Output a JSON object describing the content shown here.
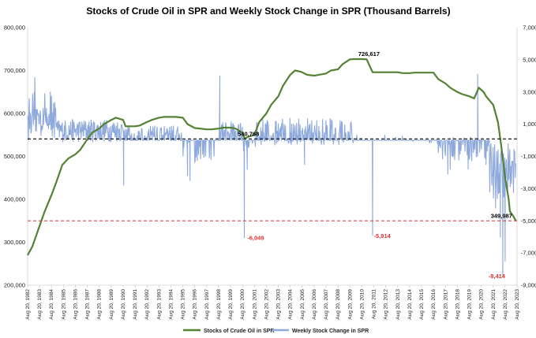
{
  "chart_data": {
    "type": "line",
    "title": "Stocks of Crude Oil in SPR and Weekly Stock Change in SPR (Thousand Barrels)",
    "left_axis": {
      "min": 200000,
      "max": 800000,
      "ticks": [
        "200,000",
        "300,000",
        "400,000",
        "500,000",
        "600,000",
        "700,000",
        "800,000"
      ]
    },
    "right_axis": {
      "min": -9000,
      "max": 7000,
      "ticks": [
        "-9,000",
        "-7,000",
        "-5,000",
        "-3,000",
        "-1,000",
        "1,000",
        "3,000",
        "5,000",
        "7,000"
      ]
    },
    "x_start_year": 1982,
    "x_end_year": 2023,
    "x_tick_labels": [
      "Aug 20, 1982",
      "Aug 20, 1983",
      "Aug 20, 1984",
      "Aug 20, 1985",
      "Aug 20, 1986",
      "Aug 20, 1987",
      "Aug 20, 1988",
      "Aug 20, 1989",
      "Aug 20, 1990",
      "Aug 20, 1991",
      "Aug 20, 1992",
      "Aug 20, 1993",
      "Aug 20, 1994",
      "Aug 20, 1995",
      "Aug 20, 1996",
      "Aug 20, 1997",
      "Aug 20, 1998",
      "Aug 20, 1999",
      "Aug 20, 2000",
      "Aug 20, 2001",
      "Aug 20, 2002",
      "Aug 20, 2003",
      "Aug 20, 2004",
      "Aug 20, 2005",
      "Aug 20, 2006",
      "Aug 20, 2007",
      "Aug 20, 2008",
      "Aug 20, 2009",
      "Aug 20, 2010",
      "Aug 20, 2011",
      "Aug 20, 2012",
      "Aug 20, 2013",
      "Aug 20, 2014",
      "Aug 20, 2015",
      "Aug 20, 2016",
      "Aug 20, 2017",
      "Aug 20, 2018",
      "Aug 20, 2019",
      "Aug 20, 2020",
      "Aug 20, 2021",
      "Aug 20, 2022",
      "Aug 20, 2023"
    ],
    "series": [
      {
        "name": "Stocks of Crude Oil in SPR",
        "axis": "left",
        "color": "#548235",
        "points": [
          [
            1982.6,
            270000
          ],
          [
            1983.0,
            290000
          ],
          [
            1983.5,
            330000
          ],
          [
            1984.0,
            370000
          ],
          [
            1984.6,
            410000
          ],
          [
            1985.0,
            440000
          ],
          [
            1985.5,
            480000
          ],
          [
            1986.0,
            495000
          ],
          [
            1986.6,
            505000
          ],
          [
            1987.0,
            515000
          ],
          [
            1987.6,
            540000
          ],
          [
            1988.0,
            555000
          ],
          [
            1988.6,
            565000
          ],
          [
            1989.0,
            575000
          ],
          [
            1989.6,
            585000
          ],
          [
            1990.0,
            590000
          ],
          [
            1990.6,
            585000
          ],
          [
            1990.8,
            570000
          ],
          [
            1991.0,
            570000
          ],
          [
            1991.6,
            570000
          ],
          [
            1992.0,
            572000
          ],
          [
            1992.6,
            580000
          ],
          [
            1993.0,
            585000
          ],
          [
            1993.6,
            590000
          ],
          [
            1994.0,
            592000
          ],
          [
            1994.6,
            592000
          ],
          [
            1995.0,
            592000
          ],
          [
            1995.6,
            590000
          ],
          [
            1996.0,
            575000
          ],
          [
            1996.6,
            566000
          ],
          [
            1997.0,
            565000
          ],
          [
            1997.6,
            563000
          ],
          [
            1998.0,
            563000
          ],
          [
            1998.6,
            565000
          ],
          [
            1999.0,
            567000
          ],
          [
            1999.6,
            567000
          ],
          [
            2000.0,
            565000
          ],
          [
            2000.6,
            555000
          ],
          [
            2000.8,
            541000
          ],
          [
            2001.0,
            545000
          ],
          [
            2001.6,
            550000
          ],
          [
            2002.0,
            580000
          ],
          [
            2002.6,
            600000
          ],
          [
            2003.0,
            620000
          ],
          [
            2003.6,
            640000
          ],
          [
            2004.0,
            665000
          ],
          [
            2004.6,
            690000
          ],
          [
            2005.0,
            700000
          ],
          [
            2005.5,
            697000
          ],
          [
            2006.0,
            690000
          ],
          [
            2006.6,
            688000
          ],
          [
            2007.0,
            690000
          ],
          [
            2007.6,
            693000
          ],
          [
            2008.0,
            700000
          ],
          [
            2008.6,
            703000
          ],
          [
            2009.0,
            715000
          ],
          [
            2009.6,
            726000
          ],
          [
            2010.0,
            726617
          ],
          [
            2010.6,
            726617
          ],
          [
            2011.0,
            726000
          ],
          [
            2011.5,
            696000
          ],
          [
            2012.0,
            696000
          ],
          [
            2012.6,
            696000
          ],
          [
            2013.0,
            696000
          ],
          [
            2013.6,
            696000
          ],
          [
            2014.0,
            694000
          ],
          [
            2014.6,
            694000
          ],
          [
            2015.0,
            695000
          ],
          [
            2015.6,
            695000
          ],
          [
            2016.0,
            695000
          ],
          [
            2016.6,
            695000
          ],
          [
            2017.0,
            680000
          ],
          [
            2017.6,
            670000
          ],
          [
            2018.0,
            660000
          ],
          [
            2018.6,
            650000
          ],
          [
            2019.0,
            645000
          ],
          [
            2019.6,
            640000
          ],
          [
            2020.0,
            635000
          ],
          [
            2020.4,
            660000
          ],
          [
            2020.8,
            650000
          ],
          [
            2021.0,
            640000
          ],
          [
            2021.6,
            620000
          ],
          [
            2022.0,
            580000
          ],
          [
            2022.3,
            520000
          ],
          [
            2022.6,
            450000
          ],
          [
            2022.9,
            400000
          ],
          [
            2023.0,
            372000
          ],
          [
            2023.3,
            360000
          ],
          [
            2023.5,
            349987
          ]
        ]
      },
      {
        "name": "Weekly Stock Change in SPR",
        "axis": "right",
        "color": "#8EA9DB"
      }
    ],
    "reference_lines": [
      {
        "axis": "left",
        "value": 540768,
        "color": "#000000"
      },
      {
        "axis": "left",
        "value": 349987,
        "color": "#E03030"
      }
    ],
    "annotations": [
      {
        "text": "726,617",
        "x": 2010.3,
        "y": 726617,
        "axis": "left",
        "color": "#000000"
      },
      {
        "text": "540,768",
        "x": 2000.2,
        "y": 540768,
        "axis": "left",
        "color": "#000000"
      },
      {
        "text": "349,987",
        "x": 2021.4,
        "y": 349987,
        "axis": "left",
        "color": "#000000"
      },
      {
        "text": "-6,049",
        "x": 2001.0,
        "y": -6049,
        "axis": "right",
        "color": "#E03030"
      },
      {
        "text": "-5,914",
        "x": 2011.6,
        "y": -5914,
        "axis": "right",
        "color": "#E03030"
      },
      {
        "text": "-8,414",
        "x": 2021.2,
        "y": -8414,
        "axis": "right",
        "color": "#E03030"
      }
    ],
    "legend": "bottom",
    "grid": false
  },
  "colors": {
    "stock_line": "#548235",
    "change_line": "#8EA9DB",
    "red_ref": "#E03030"
  }
}
